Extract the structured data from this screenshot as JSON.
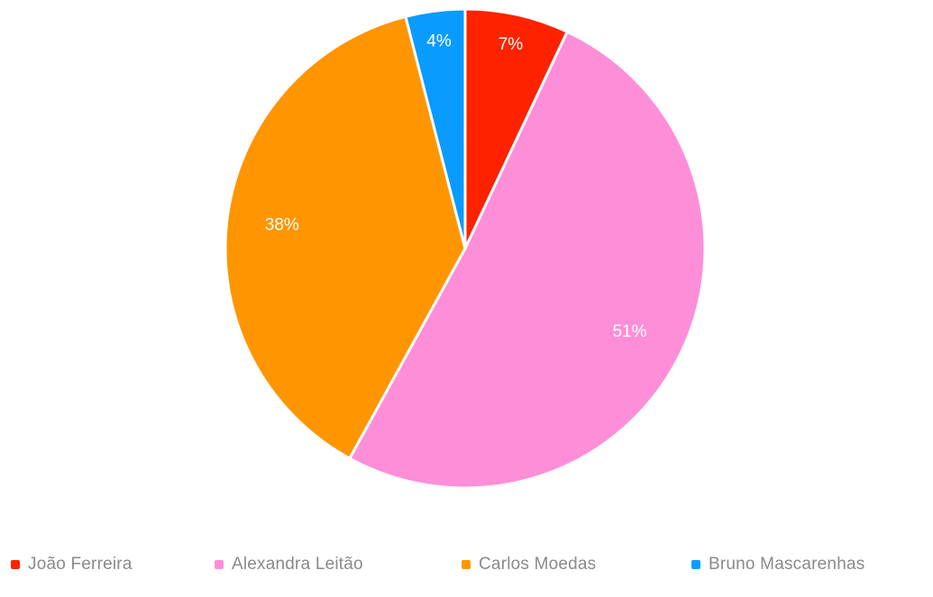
{
  "chart_data": {
    "type": "pie",
    "title": "",
    "slices": [
      {
        "name": "João Ferreira",
        "value": 7,
        "label": "7%",
        "color": "#ff2200"
      },
      {
        "name": "Alexandra Leitão",
        "value": 51,
        "label": "51%",
        "color": "#ff8ed8"
      },
      {
        "name": "Carlos Moedas",
        "value": 38,
        "label": "38%",
        "color": "#ff9500"
      },
      {
        "name": "Bruno Mascarenhas",
        "value": 4,
        "label": "4%",
        "color": "#0a9bff"
      }
    ],
    "legend_position": "bottom"
  }
}
